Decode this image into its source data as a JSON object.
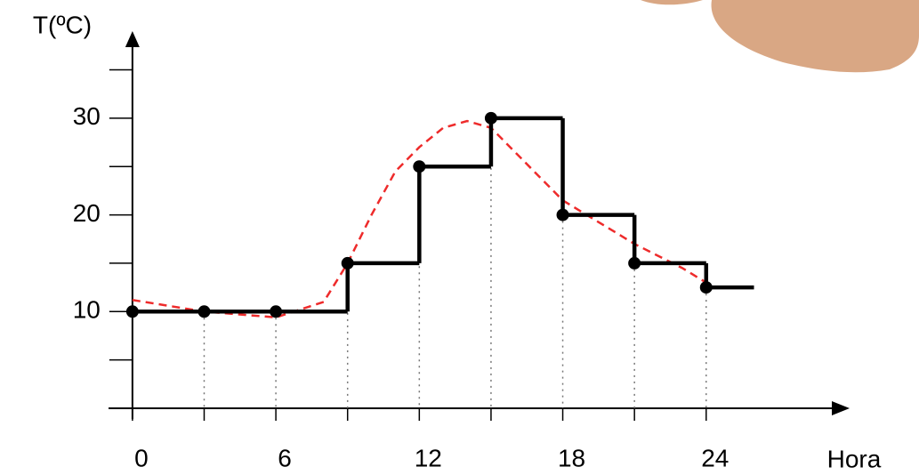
{
  "chart_data": {
    "type": "step",
    "y_label": "T(ºC)",
    "x_label": "Hora",
    "xlim": [
      -1,
      30
    ],
    "ylim": [
      0,
      39
    ],
    "xticks": [
      0,
      6,
      12,
      18,
      24
    ],
    "x_minor_ticks": [
      3,
      9,
      15,
      21
    ],
    "yticks": [
      10,
      20,
      30
    ],
    "y_minor_ticks": [
      5,
      15,
      25,
      35
    ],
    "series": [
      {
        "kind": "step",
        "color": "#000000",
        "x": [
          0,
          3,
          6,
          9,
          12,
          15,
          18,
          21,
          24
        ],
        "values": [
          10,
          10,
          10,
          15,
          25,
          30,
          20,
          15,
          12.5
        ],
        "x_end": 26
      },
      {
        "kind": "dashed",
        "color": "#ee2b2b",
        "x": [
          0,
          3,
          6,
          8,
          9,
          10,
          11,
          12,
          13,
          14,
          15,
          16,
          17,
          18,
          19,
          21,
          23,
          24
        ],
        "values": [
          11.2,
          10,
          9.4,
          11,
          15,
          20,
          24.5,
          27,
          29,
          29.7,
          29,
          26.5,
          24,
          21.5,
          20,
          17,
          14.5,
          13
        ]
      }
    ]
  }
}
